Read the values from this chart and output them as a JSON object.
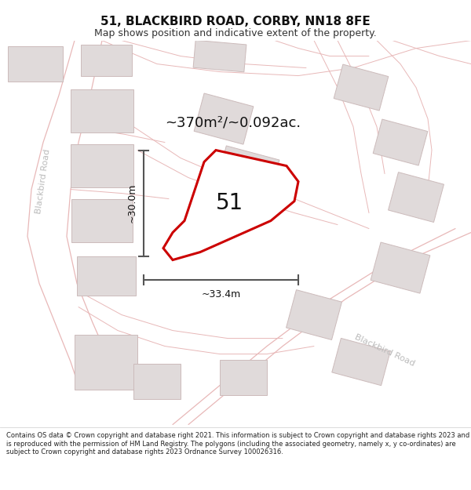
{
  "title_line1": "51, BLACKBIRD ROAD, CORBY, NN18 8FE",
  "title_line2": "Map shows position and indicative extent of the property.",
  "area_text": "~370m²/~0.092ac.",
  "label_51": "51",
  "dim_vertical": "~30.0m",
  "dim_horizontal": "~33.4m",
  "footer_text": "Contains OS data © Crown copyright and database right 2021. This information is subject to Crown copyright and database rights 2023 and is reproduced with the permission of HM Land Registry. The polygons (including the associated geometry, namely x, y co-ordinates) are subject to Crown copyright and database rights 2023 Ordnance Survey 100026316.",
  "bg_color": "#ffffff",
  "map_bg": "#f7f2f2",
  "plot_fill": "#f0eded",
  "plot_edge": "#cc0000",
  "road_color": "#e8b8b8",
  "building_fill": "#e0dada",
  "building_edge": "#ccbbbb",
  "dim_color": "#555555",
  "road_label_color": "#bbbbbb",
  "title_fontsize": 11,
  "subtitle_fontsize": 9,
  "footer_fontsize": 6.0
}
